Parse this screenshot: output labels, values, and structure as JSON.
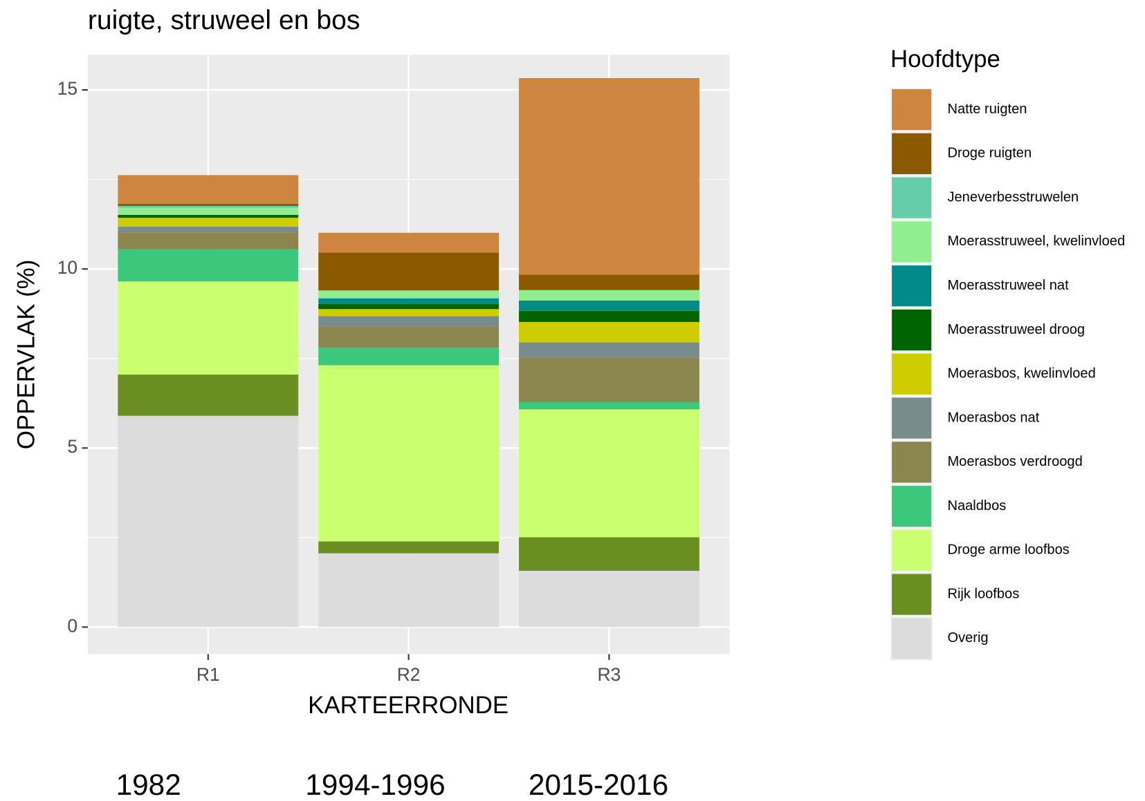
{
  "chart_data": {
    "type": "stacked_bar",
    "title": "ruigte, struweel en bos",
    "x_label": "KARTEERRONDE",
    "y_label": "OPPERVLAK (%)",
    "legend_title": "Hoofdtype",
    "categories": [
      "R1",
      "R2",
      "R3"
    ],
    "annotations": [
      "1982",
      "1994-1996",
      "2015-2016"
    ],
    "ylim": [
      -0.755,
      15.98
    ],
    "yticks": [
      0,
      5,
      10,
      15
    ],
    "minor_yticks": [
      2.5,
      7.5,
      12.5
    ],
    "grid": true,
    "legend": "right",
    "series": [
      {
        "name": "Natte ruigten",
        "color": "#cd853f",
        "values": [
          0.8,
          0.55,
          5.49
        ]
      },
      {
        "name": "Droge ruigten",
        "color": "#8b5a00",
        "values": [
          0.06,
          1.06,
          0.43
        ]
      },
      {
        "name": "Jeneverbesstruwelen",
        "color": "#66cdaa",
        "values": [
          0.05,
          0,
          0
        ]
      },
      {
        "name": "Moerasstruweel, kwelinvloed",
        "color": "#90ee90",
        "values": [
          0.2,
          0.22,
          0.29
        ]
      },
      {
        "name": "Moerasstruweel nat",
        "color": "#008b8b",
        "values": [
          0,
          0.16,
          0.29
        ]
      },
      {
        "name": "Moerasstruweel droog",
        "color": "#006400",
        "values": [
          0.08,
          0.14,
          0.31
        ]
      },
      {
        "name": "Moerasbos, kwelinvloed",
        "color": "#cdcd00",
        "values": [
          0.25,
          0.2,
          0.57
        ]
      },
      {
        "name": "Moerasbos nat",
        "color": "#7a8b8b",
        "values": [
          0.16,
          0.29,
          0.43
        ]
      },
      {
        "name": "Moerasbos verdroogd",
        "color": "#8b864e",
        "values": [
          0.47,
          0.59,
          1.24
        ]
      },
      {
        "name": "Naaldbos",
        "color": "#3cc87c",
        "values": [
          0.9,
          0.49,
          0.2
        ]
      },
      {
        "name": "Droge arme loofbos",
        "color": "#caff70",
        "values": [
          2.6,
          4.92,
          3.57
        ]
      },
      {
        "name": "Rijk loofbos",
        "color": "#6b8e23",
        "values": [
          1.15,
          0.33,
          0.94
        ]
      },
      {
        "name": "Overig",
        "color": "#dcdcdc",
        "values": [
          5.9,
          2.06,
          1.57
        ]
      }
    ]
  }
}
